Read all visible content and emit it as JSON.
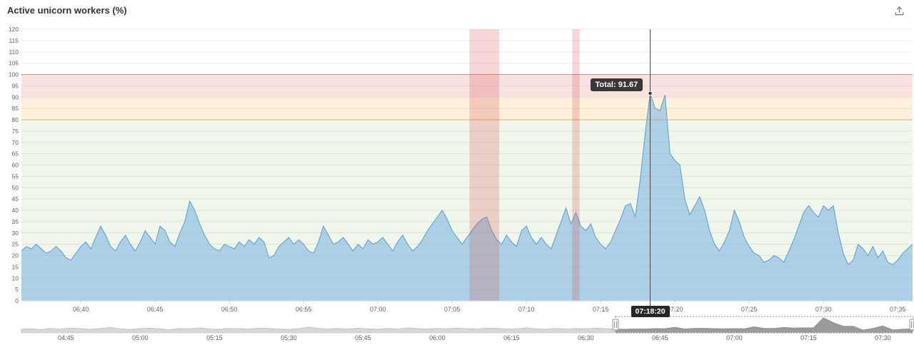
{
  "header": {
    "title": "Active unicorn workers (%)"
  },
  "toolbar": {
    "export_icon": "export-icon"
  },
  "tooltip": {
    "series": "Total",
    "value": "91.67",
    "text": "Total: 91.67"
  },
  "crosshair": {
    "time": "07:18:20",
    "value": 91.67
  },
  "chart_data": {
    "type": "area",
    "title": "Active unicorn workers (%)",
    "series_name": "Total",
    "xlabel": "",
    "ylabel": "",
    "ylim": [
      0,
      120
    ],
    "y_ticks": [
      0,
      5,
      10,
      15,
      20,
      25,
      30,
      35,
      40,
      45,
      50,
      55,
      60,
      65,
      70,
      75,
      80,
      85,
      90,
      95,
      100,
      105,
      110,
      115,
      120
    ],
    "x_start": "06:36:00",
    "x_end": "07:36:00",
    "x_step_seconds": 20,
    "x_ticks": [
      "06:40",
      "06:45",
      "06:50",
      "06:55",
      "07:00",
      "07:05",
      "07:10",
      "07:15",
      "07:20",
      "07:25",
      "07:30",
      "07:35"
    ],
    "plot_bands_y": [
      {
        "from": 0,
        "to": 80,
        "color": "#eff6ea"
      },
      {
        "from": 80,
        "to": 90,
        "color": "#fdf0dc"
      },
      {
        "from": 90,
        "to": 100,
        "color": "#f9e2e2"
      }
    ],
    "plot_lines_y": [
      {
        "value": 80,
        "color": "#edab5e"
      },
      {
        "value": 100,
        "color": "#e08a8a"
      }
    ],
    "plot_bands_x": [
      {
        "from": "07:06:10",
        "to": "07:08:10",
        "color": "rgba(215,70,70,0.22)"
      },
      {
        "from": "07:13:05",
        "to": "07:13:35",
        "color": "rgba(215,70,70,0.22)"
      }
    ],
    "colors": {
      "area_fill": "rgba(116,178,225,0.55)",
      "area_line": "#569fd0"
    },
    "values": [
      22,
      24,
      23,
      25,
      23,
      21,
      22,
      24,
      22,
      19,
      18,
      21,
      24,
      26,
      23,
      28,
      33,
      29,
      24,
      22,
      26,
      29,
      25,
      22,
      26,
      31,
      28,
      25,
      33,
      31,
      26,
      24,
      30,
      35,
      44,
      40,
      34,
      29,
      25,
      23,
      22,
      25,
      24,
      23,
      26,
      24,
      27,
      25,
      28,
      26,
      19,
      20,
      24,
      26,
      28,
      25,
      27,
      25,
      22,
      21,
      26,
      33,
      29,
      25,
      26,
      28,
      25,
      22,
      25,
      23,
      27,
      25,
      26,
      28,
      25,
      22,
      26,
      29,
      25,
      22,
      24,
      27,
      31,
      34,
      37,
      40,
      36,
      31,
      28,
      25,
      28,
      31,
      34,
      36,
      37,
      31,
      27,
      25,
      29,
      26,
      24,
      31,
      33,
      28,
      25,
      28,
      25,
      23,
      29,
      35,
      41,
      34,
      39,
      33,
      31,
      34,
      28,
      25,
      23,
      26,
      31,
      36,
      42,
      43,
      37,
      54,
      74,
      91.67,
      85,
      84,
      91,
      65,
      62,
      60,
      45,
      38,
      42,
      46,
      40,
      31,
      25,
      22,
      26,
      31,
      40,
      35,
      28,
      24,
      21,
      20,
      17,
      18,
      20,
      19,
      17,
      22,
      27,
      33,
      39,
      42,
      39,
      37,
      42,
      40,
      42,
      30,
      21,
      16,
      18,
      25,
      23,
      20,
      24,
      19,
      22,
      17,
      16,
      18,
      21,
      23,
      25
    ],
    "navigator": {
      "x_start": "04:36:00",
      "x_end": "07:36:00",
      "x_step_seconds": 120,
      "ymax": 100,
      "x_ticks": [
        "04:45",
        "05:00",
        "05:15",
        "05:30",
        "05:45",
        "06:00",
        "06:15",
        "06:30",
        "06:45",
        "07:00",
        "07:15",
        "07:30"
      ],
      "selection_start": "06:36:00",
      "selection_end": "07:36:00",
      "values": [
        22,
        25,
        20,
        28,
        24,
        30,
        26,
        22,
        27,
        33,
        25,
        21,
        26,
        29,
        24,
        20,
        27,
        25,
        31,
        24,
        22,
        28,
        26,
        23,
        30,
        27,
        24,
        21,
        26,
        35,
        28,
        24,
        27,
        23,
        29,
        25,
        22,
        27,
        24,
        31,
        26,
        23,
        28,
        25,
        30,
        26,
        24,
        29,
        27,
        23,
        26,
        31,
        25,
        22,
        28,
        24,
        27,
        25,
        30,
        26,
        23,
        22,
        24,
        24,
        26,
        26,
        34,
        24,
        28,
        28,
        26,
        25,
        26,
        25,
        37,
        28,
        27,
        33,
        29,
        31,
        31,
        91.67,
        62,
        40,
        40,
        17,
        27,
        42,
        18,
        22,
        25
      ]
    }
  }
}
